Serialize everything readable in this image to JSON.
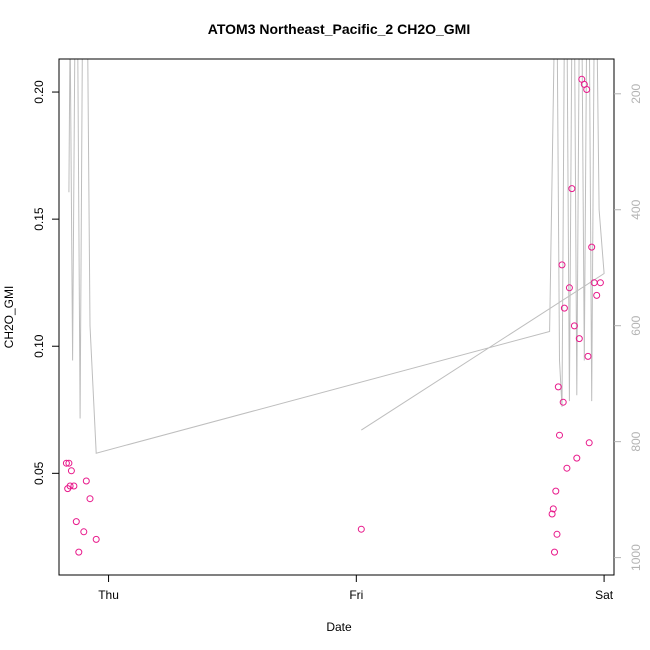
{
  "chart_data": {
    "type": "scatter",
    "title": "ATOM3 Northeast_Pacific_2 CH2O_GMI",
    "xlabel": "Date",
    "ylabel": "CH2O_GMI",
    "x_ticks": [
      {
        "label": "Thu",
        "day": 0
      },
      {
        "label": "Fri",
        "day": 1
      },
      {
        "label": "Sat",
        "day": 2
      }
    ],
    "xlim_days": [
      -0.2,
      2.04
    ],
    "ylim": [
      0.01,
      0.213
    ],
    "y_ticks": [
      {
        "label": "0.05",
        "value": 0.05
      },
      {
        "label": "0.10",
        "value": 0.1
      },
      {
        "label": "0.15",
        "value": 0.15
      },
      {
        "label": "0.20",
        "value": 0.2
      }
    ],
    "y2_ticks": [
      {
        "label": "200",
        "value": 200
      },
      {
        "label": "400",
        "value": 400
      },
      {
        "label": "600",
        "value": 600
      },
      {
        "label": "800",
        "value": 800
      },
      {
        "label": "1000",
        "value": 1000
      }
    ],
    "y2lim": [
      1030,
      140
    ],
    "grid": false,
    "legend": "none",
    "colors": {
      "points": "#e8198b",
      "pressure_line": "#bebebe",
      "axes": "#000000",
      "right_axis": "#b3b3b3"
    },
    "series": [
      {
        "kind": "points",
        "x": [
          -0.17,
          -0.165,
          -0.16,
          -0.155,
          -0.15,
          -0.14,
          -0.13,
          -0.12,
          -0.1,
          -0.09,
          -0.075,
          -0.05,
          1.02,
          1.79,
          1.795,
          1.8,
          1.805,
          1.81,
          1.815,
          1.82,
          1.83,
          1.835,
          1.84,
          1.85,
          1.86,
          1.87,
          1.88,
          1.89,
          1.9,
          1.91,
          1.92,
          1.93,
          1.935,
          1.94,
          1.95,
          1.96,
          1.97,
          1.985
        ],
        "y": [
          0.054,
          0.044,
          0.054,
          0.045,
          0.051,
          0.045,
          0.031,
          0.019,
          0.027,
          0.047,
          0.04,
          0.024,
          0.028,
          0.034,
          0.036,
          0.019,
          0.043,
          0.026,
          0.084,
          0.065,
          0.132,
          0.078,
          0.115,
          0.052,
          0.123,
          0.162,
          0.108,
          0.056,
          0.103,
          0.205,
          0.203,
          0.201,
          0.096,
          0.062,
          0.139,
          0.125,
          0.12,
          0.125
        ]
      },
      {
        "kind": "line",
        "x": [
          -0.16,
          -0.155,
          -0.145,
          -0.135,
          -0.125,
          -0.115,
          -0.105,
          -0.095,
          -0.085,
          -0.075,
          -0.05,
          1.78,
          1.8,
          1.81,
          1.82,
          1.83,
          1.84,
          1.85,
          1.86,
          1.87,
          1.88,
          1.89,
          1.9,
          1.91,
          1.92,
          1.93,
          1.94,
          1.95,
          1.96,
          1.97,
          1.98,
          2.0,
          1.02
        ],
        "y": [
          370,
          80,
          660,
          50,
          80,
          760,
          80,
          50,
          80,
          600,
          820,
          610,
          80,
          50,
          660,
          740,
          80,
          50,
          730,
          80,
          50,
          720,
          80,
          50,
          660,
          80,
          50,
          730,
          80,
          50,
          400,
          510,
          780
        ]
      }
    ]
  }
}
